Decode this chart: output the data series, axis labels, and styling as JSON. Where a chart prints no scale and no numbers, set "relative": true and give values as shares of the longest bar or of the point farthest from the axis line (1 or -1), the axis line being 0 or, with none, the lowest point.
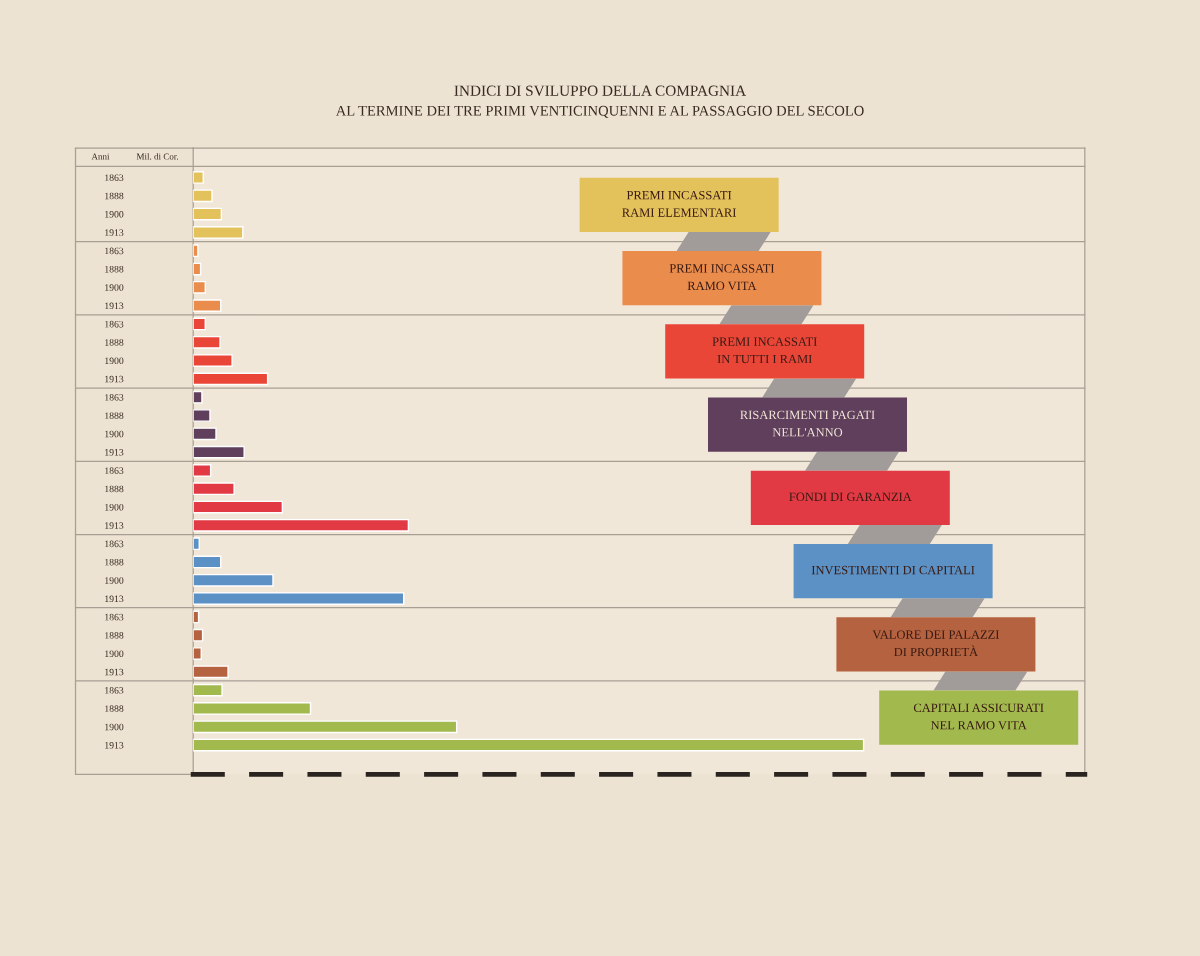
{
  "chart_data": {
    "type": "bar",
    "orientation": "horizontal",
    "relative": true,
    "title": "INDICI DI SVILUPPO DELLA COMPAGNIA",
    "subtitle": "AL TERMINE DEI TRE PRIMI VENTICINQUENNI E AL PASSAGGIO DEL SECOLO",
    "ylabel": "Anni",
    "annotations": [
      "Mil. di Cor."
    ],
    "categories": [
      "1863",
      "1888",
      "1900",
      "1913",
      "1863",
      "1888",
      "1900",
      "1913",
      "1863",
      "1888",
      "1900",
      "1913",
      "1863",
      "1888",
      "1900",
      "1913",
      "1863",
      "1888",
      "1900",
      "1913",
      "1863",
      "1888",
      "1900",
      "1913",
      "1863",
      "1888",
      "1900",
      "1913",
      "1863",
      "1888",
      "1900",
      "1913"
    ],
    "series": [
      {
        "name": "PREMI INCASSATI\nRAMI ELEMENTARI",
        "color": "#e3c25c",
        "values": [
          0.015,
          0.028,
          0.042,
          0.074,
          null,
          null,
          null,
          null,
          null,
          null,
          null,
          null,
          null,
          null,
          null,
          null,
          null,
          null,
          null,
          null,
          null,
          null,
          null,
          null,
          null,
          null,
          null,
          null,
          null,
          null,
          null,
          null
        ]
      },
      {
        "name": "PREMI INCASSATI\nRAMO VITA",
        "color": "#ea8c4c",
        "values": [
          null,
          null,
          null,
          null,
          0.007,
          0.011,
          0.018,
          0.041,
          null,
          null,
          null,
          null,
          null,
          null,
          null,
          null,
          null,
          null,
          null,
          null,
          null,
          null,
          null,
          null,
          null,
          null,
          null,
          null,
          null,
          null,
          null,
          null
        ]
      },
      {
        "name": "PREMI INCASSATI\nIN TUTTI I RAMI",
        "color": "#ea4638",
        "values": [
          null,
          null,
          null,
          null,
          null,
          null,
          null,
          null,
          0.018,
          0.04,
          0.058,
          0.111,
          null,
          null,
          null,
          null,
          null,
          null,
          null,
          null,
          null,
          null,
          null,
          null,
          null,
          null,
          null,
          null,
          null,
          null,
          null,
          null
        ]
      },
      {
        "name": "RISARCIMENTI PAGATI\nNELL'ANNO",
        "color": "#5f3f5c",
        "values": [
          null,
          null,
          null,
          null,
          null,
          null,
          null,
          null,
          null,
          null,
          null,
          null,
          0.013,
          0.025,
          0.034,
          0.076,
          null,
          null,
          null,
          null,
          null,
          null,
          null,
          null,
          null,
          null,
          null,
          null,
          null,
          null,
          null,
          null
        ]
      },
      {
        "name": "FONDI DI GARANZIA",
        "color": "#e23a44",
        "values": [
          null,
          null,
          null,
          null,
          null,
          null,
          null,
          null,
          null,
          null,
          null,
          null,
          null,
          null,
          null,
          null,
          0.026,
          0.061,
          0.133,
          0.321,
          null,
          null,
          null,
          null,
          null,
          null,
          null,
          null,
          null,
          null,
          null,
          null
        ]
      },
      {
        "name": "INVESTIMENTI DI CAPITALI",
        "color": "#5b91c4",
        "values": [
          null,
          null,
          null,
          null,
          null,
          null,
          null,
          null,
          null,
          null,
          null,
          null,
          null,
          null,
          null,
          null,
          null,
          null,
          null,
          null,
          0.009,
          0.041,
          0.119,
          0.314,
          null,
          null,
          null,
          null,
          null,
          null,
          null,
          null
        ]
      },
      {
        "name": "VALORE DEI PALAZZI\nDI PROPRIETÀ",
        "color": "#b4623f",
        "values": [
          null,
          null,
          null,
          null,
          null,
          null,
          null,
          null,
          null,
          null,
          null,
          null,
          null,
          null,
          null,
          null,
          null,
          null,
          null,
          null,
          null,
          null,
          null,
          null,
          0.008,
          0.014,
          0.012,
          0.052,
          null,
          null,
          null,
          null
        ]
      },
      {
        "name": "CAPITALI ASSICURATI\nNEL RAMO VITA",
        "color": "#a2b94e",
        "values": [
          null,
          null,
          null,
          null,
          null,
          null,
          null,
          null,
          null,
          null,
          null,
          null,
          null,
          null,
          null,
          null,
          null,
          null,
          null,
          null,
          null,
          null,
          null,
          null,
          null,
          null,
          null,
          null,
          0.043,
          0.175,
          0.393,
          1
        ]
      }
    ]
  }
}
